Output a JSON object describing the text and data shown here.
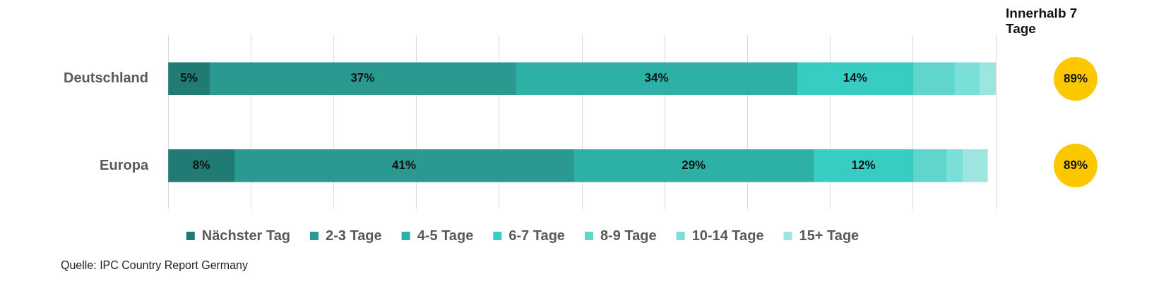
{
  "chart_data": {
    "type": "bar",
    "orientation": "horizontal",
    "stacked": true,
    "categories": [
      "Deutschland",
      "Europa"
    ],
    "series": [
      {
        "name": "Nächster Tag",
        "color": "#1f7b74",
        "values": [
          5,
          8
        ],
        "value_labels": [
          "5%",
          "8%"
        ]
      },
      {
        "name": "2-3 Tage",
        "color": "#2a9a91",
        "values": [
          37,
          41
        ],
        "value_labels": [
          "37%",
          "41%"
        ]
      },
      {
        "name": "4-5 Tage",
        "color": "#2db0a6",
        "values": [
          34,
          29
        ],
        "value_labels": [
          "34%",
          "29%"
        ]
      },
      {
        "name": "6-7 Tage",
        "color": "#38cdc2",
        "values": [
          14,
          12
        ],
        "value_labels": [
          "14%",
          "12%"
        ]
      },
      {
        "name": "8-9 Tage",
        "color": "#5fd5cc",
        "values": [
          5,
          4
        ],
        "value_labels": [
          null,
          null
        ]
      },
      {
        "name": "10-14 Tage",
        "color": "#7adfd7",
        "values": [
          3,
          2
        ],
        "value_labels": [
          null,
          null
        ]
      },
      {
        "name": "15+ Tage",
        "color": "#9de6e0",
        "values": [
          2,
          3
        ],
        "value_labels": [
          null,
          null
        ]
      }
    ],
    "xlim": [
      0,
      100
    ],
    "xticks": [
      0,
      10,
      20,
      30,
      40,
      50,
      60,
      70,
      80,
      90,
      100
    ],
    "tick_labels": "y",
    "grid": "x",
    "legend": "bottom",
    "annotations": [
      "Innerhalb 7 Tage",
      "89%",
      "89%",
      "Quelle: IPC Country Report Germany"
    ]
  }
}
